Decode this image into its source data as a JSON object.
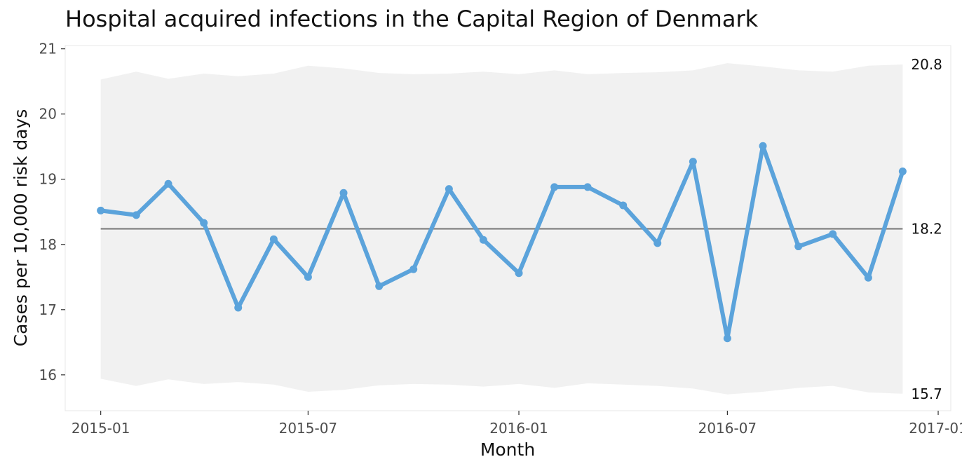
{
  "chart_data": {
    "type": "line",
    "title": "Hospital acquired infections in the Capital Region of Denmark",
    "xlabel": "Month",
    "ylabel": "Cases per 10,000 risk days",
    "ylim": [
      15.45,
      21.05
    ],
    "xlim": [
      "2014-12-01",
      "2017-01-12"
    ],
    "y_ticks": [
      16,
      17,
      18,
      19,
      20,
      21
    ],
    "x_ticks": [
      "2015-01",
      "2015-07",
      "2016-01",
      "2016-07",
      "2017-01"
    ],
    "x": [
      "2015-01-01",
      "2015-02-01",
      "2015-03-01",
      "2015-04-01",
      "2015-05-01",
      "2015-06-01",
      "2015-07-01",
      "2015-08-01",
      "2015-09-01",
      "2015-10-01",
      "2015-11-01",
      "2015-12-01",
      "2016-01-01",
      "2016-02-01",
      "2016-03-01",
      "2016-04-01",
      "2016-05-01",
      "2016-06-01",
      "2016-07-01",
      "2016-08-01",
      "2016-09-01",
      "2016-10-01",
      "2016-11-01",
      "2016-12-01"
    ],
    "series": [
      {
        "values": [
          18.52,
          18.45,
          18.93,
          18.33,
          17.03,
          18.08,
          17.5,
          18.79,
          17.36,
          17.62,
          18.85,
          18.07,
          17.56,
          18.88,
          18.88,
          18.6,
          18.02,
          19.27,
          16.56,
          19.51,
          17.97,
          18.16,
          17.49,
          19.12
        ],
        "color": "#5ba3db"
      }
    ],
    "center_line": 18.24,
    "upper_limit": [
      20.53,
      20.65,
      20.54,
      20.62,
      20.58,
      20.62,
      20.74,
      20.7,
      20.63,
      20.61,
      20.62,
      20.65,
      20.61,
      20.67,
      20.61,
      20.63,
      20.64,
      20.67,
      20.78,
      20.73,
      20.67,
      20.65,
      20.74,
      20.76
    ],
    "lower_limit": [
      15.94,
      15.83,
      15.93,
      15.86,
      15.89,
      15.85,
      15.74,
      15.77,
      15.84,
      15.86,
      15.85,
      15.82,
      15.86,
      15.8,
      15.87,
      15.85,
      15.83,
      15.79,
      15.7,
      15.74,
      15.8,
      15.83,
      15.73,
      15.71
    ],
    "end_labels": {
      "upper": "20.8",
      "center": "18.2",
      "lower": "15.7"
    },
    "colors": {
      "line": "#5ba3db",
      "band": "#f1f1f1",
      "center": "#8c8c8c",
      "panel_border": "#ebebeb"
    },
    "grid": false,
    "legend": "none"
  }
}
